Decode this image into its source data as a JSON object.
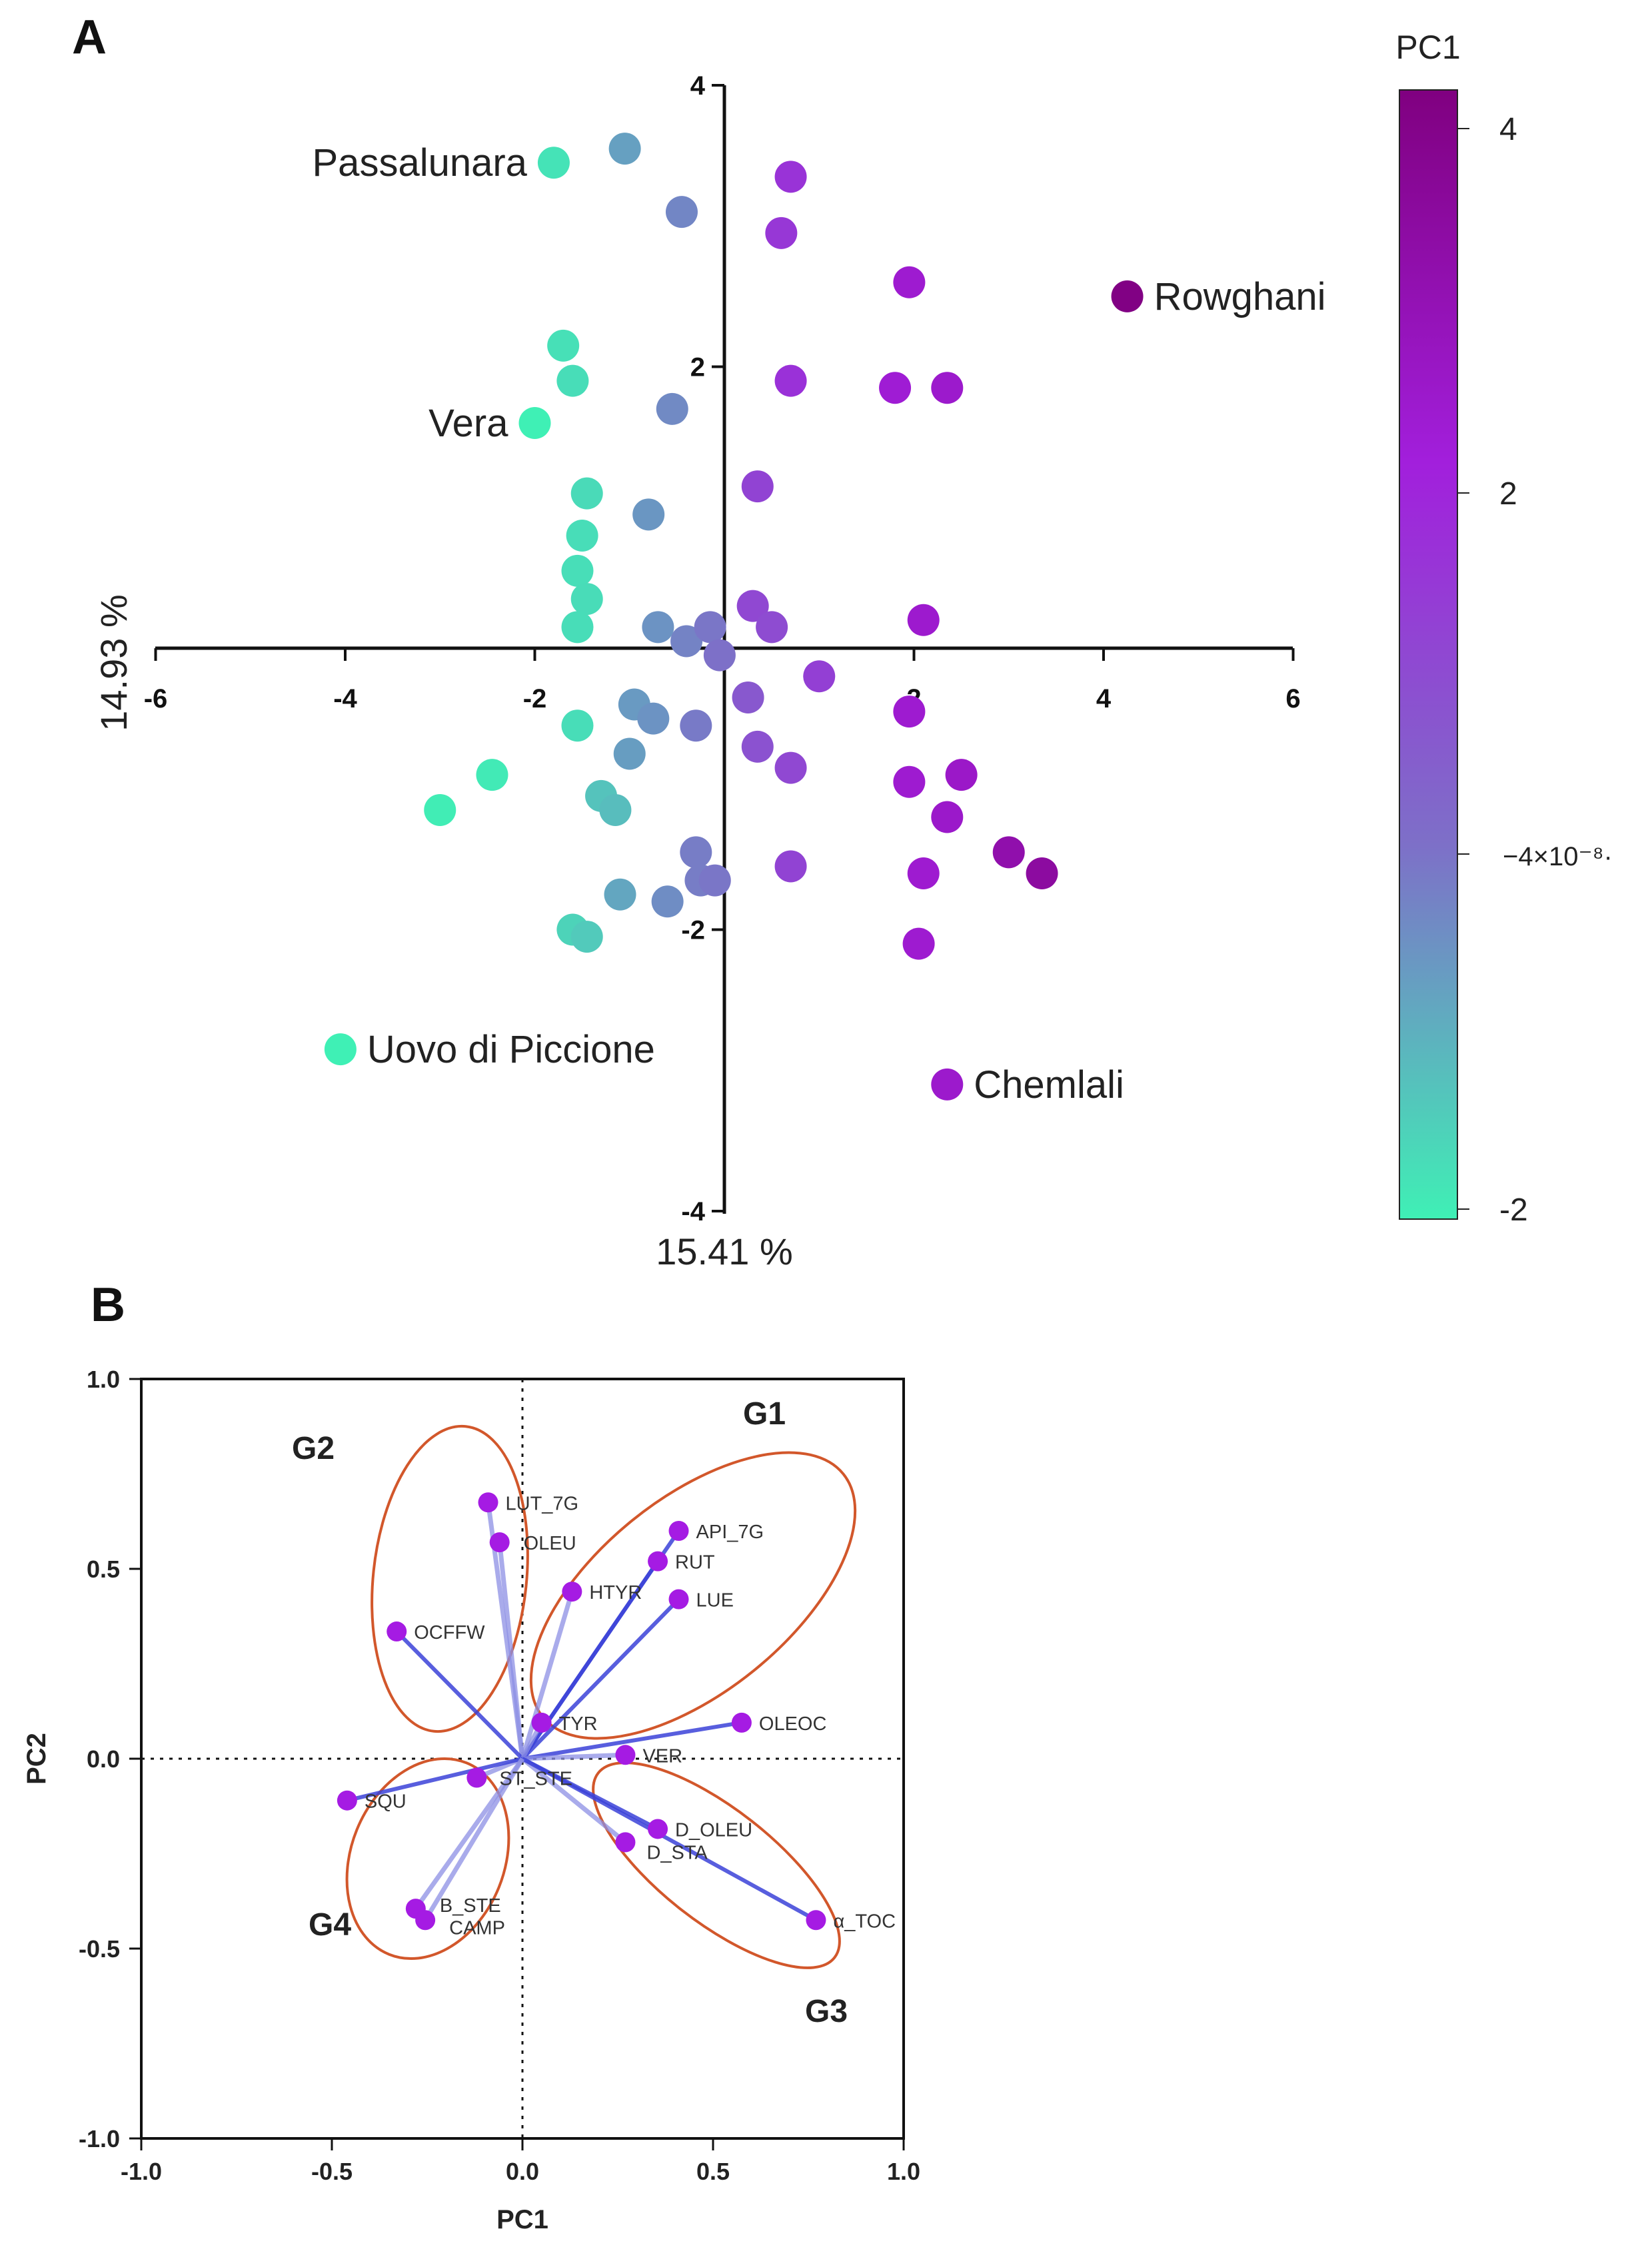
{
  "chart_data": [
    {
      "panel": "A",
      "type": "scatter",
      "title": "",
      "xlabel": "15.41 %",
      "ylabel": "14.93 %",
      "xlim": [
        -6,
        6
      ],
      "ylim": [
        -4,
        4
      ],
      "xticks": [
        "-6",
        "-4",
        "-2",
        "2",
        "4",
        "6"
      ],
      "yticks": [
        "4",
        "2",
        "-2",
        "-4"
      ],
      "colorbar": {
        "title": "PC1",
        "ticks": [
          "4",
          "2",
          "−4×10⁻⁸·",
          "-2"
        ],
        "colors": [
          "#800080",
          "#a21fdc",
          "#7d70c8",
          "#3ff0b5"
        ]
      },
      "points": [
        {
          "x": -1.8,
          "y": 3.45,
          "c": -1.8
        },
        {
          "x": -1.05,
          "y": 3.55,
          "c": -0.75
        },
        {
          "x": -0.45,
          "y": 3.1,
          "c": -0.35
        },
        {
          "x": 0.7,
          "y": 3.35,
          "c": 1.5
        },
        {
          "x": 0.6,
          "y": 2.95,
          "c": 1.4
        },
        {
          "x": 1.95,
          "y": 2.6,
          "c": 2.3
        },
        {
          "x": 4.25,
          "y": 2.5,
          "c": 4.2
        },
        {
          "x": -1.7,
          "y": 2.15,
          "c": -1.75
        },
        {
          "x": -1.6,
          "y": 1.9,
          "c": -1.7
        },
        {
          "x": -2.0,
          "y": 1.6,
          "c": -2.0
        },
        {
          "x": -0.55,
          "y": 1.7,
          "c": -0.4
        },
        {
          "x": 0.7,
          "y": 1.9,
          "c": 1.55
        },
        {
          "x": 1.8,
          "y": 1.85,
          "c": 2.2
        },
        {
          "x": 2.35,
          "y": 1.85,
          "c": 2.4
        },
        {
          "x": -1.45,
          "y": 1.1,
          "c": -1.65
        },
        {
          "x": -0.8,
          "y": 0.95,
          "c": -0.6
        },
        {
          "x": 0.35,
          "y": 1.15,
          "c": 1.1
        },
        {
          "x": -1.5,
          "y": 0.8,
          "c": -1.7
        },
        {
          "x": -1.55,
          "y": 0.55,
          "c": -1.72
        },
        {
          "x": -1.45,
          "y": 0.35,
          "c": -1.68
        },
        {
          "x": 0.3,
          "y": 0.3,
          "c": 1.0
        },
        {
          "x": -1.55,
          "y": 0.15,
          "c": -1.7
        },
        {
          "x": -0.7,
          "y": 0.15,
          "c": -0.55
        },
        {
          "x": -0.4,
          "y": 0.05,
          "c": -0.3
        },
        {
          "x": -0.15,
          "y": 0.15,
          "c": -0.1
        },
        {
          "x": -0.05,
          "y": -0.05,
          "c": 0.0
        },
        {
          "x": 0.5,
          "y": 0.15,
          "c": 0.9
        },
        {
          "x": 2.1,
          "y": 0.2,
          "c": 2.35
        },
        {
          "x": 1.0,
          "y": -0.2,
          "c": 1.2
        },
        {
          "x": 0.25,
          "y": -0.35,
          "c": 0.6
        },
        {
          "x": 1.95,
          "y": -0.45,
          "c": 2.3
        },
        {
          "x": -0.95,
          "y": -0.4,
          "c": -0.65
        },
        {
          "x": -0.75,
          "y": -0.5,
          "c": -0.55
        },
        {
          "x": -0.3,
          "y": -0.55,
          "c": -0.15
        },
        {
          "x": -1.55,
          "y": -0.55,
          "c": -1.7
        },
        {
          "x": 0.35,
          "y": -0.7,
          "c": 0.75
        },
        {
          "x": 0.7,
          "y": -0.85,
          "c": 1.0
        },
        {
          "x": -1.0,
          "y": -0.75,
          "c": -0.7
        },
        {
          "x": -2.45,
          "y": -0.9,
          "c": -1.9
        },
        {
          "x": 1.95,
          "y": -0.95,
          "c": 2.3
        },
        {
          "x": 2.5,
          "y": -0.9,
          "c": 2.5
        },
        {
          "x": -1.3,
          "y": -1.05,
          "c": -1.3
        },
        {
          "x": -1.15,
          "y": -1.15,
          "c": -1.2
        },
        {
          "x": -3.0,
          "y": -1.15,
          "c": -1.95
        },
        {
          "x": 2.35,
          "y": -1.2,
          "c": 2.45
        },
        {
          "x": 3.0,
          "y": -1.45,
          "c": 3.2
        },
        {
          "x": 3.35,
          "y": -1.6,
          "c": 3.5
        },
        {
          "x": -0.3,
          "y": -1.45,
          "c": -0.2
        },
        {
          "x": 0.7,
          "y": -1.55,
          "c": 1.1
        },
        {
          "x": 2.1,
          "y": -1.6,
          "c": 2.3
        },
        {
          "x": -0.25,
          "y": -1.65,
          "c": -0.2
        },
        {
          "x": -0.1,
          "y": -1.65,
          "c": -0.1
        },
        {
          "x": -1.1,
          "y": -1.75,
          "c": -0.85
        },
        {
          "x": -0.6,
          "y": -1.8,
          "c": -0.45
        },
        {
          "x": -1.6,
          "y": -2.0,
          "c": -1.55
        },
        {
          "x": -1.45,
          "y": -2.05,
          "c": -1.4
        },
        {
          "x": 2.05,
          "y": -2.1,
          "c": 2.3
        },
        {
          "x": -4.05,
          "y": -2.85,
          "c": -2.0
        },
        {
          "x": 2.35,
          "y": -3.1,
          "c": 2.4
        }
      ],
      "annotations": [
        {
          "text": "Passalunara",
          "x": -1.8,
          "y": 3.45,
          "side": "left"
        },
        {
          "text": "Rowghani",
          "x": 4.25,
          "y": 2.5,
          "side": "right"
        },
        {
          "text": "Vera",
          "x": -2.0,
          "y": 1.6,
          "side": "left"
        },
        {
          "text": "Uovo di Piccione",
          "x": -4.05,
          "y": -2.85,
          "side": "right"
        },
        {
          "text": "Chemlali",
          "x": 2.35,
          "y": -3.1,
          "side": "right"
        }
      ]
    },
    {
      "panel": "B",
      "type": "scatter",
      "title": "",
      "xlabel": "PC1",
      "ylabel": "PC2",
      "xlim": [
        -1.0,
        1.0
      ],
      "ylim": [
        -1.0,
        1.0
      ],
      "xticks": [
        "-1.0",
        "-0.5",
        "0.0",
        "0.5",
        "1.0"
      ],
      "yticks": [
        "1.0",
        "0.5",
        "0.0",
        "-0.5",
        "-1.0"
      ],
      "loadings": [
        {
          "name": "LUT_7G",
          "x": -0.09,
          "y": 0.675
        },
        {
          "name": "OLEU",
          "x": -0.06,
          "y": 0.57
        },
        {
          "name": "API_7G",
          "x": 0.41,
          "y": 0.6
        },
        {
          "name": "RUT",
          "x": 0.355,
          "y": 0.52
        },
        {
          "name": "HTYR",
          "x": 0.13,
          "y": 0.44
        },
        {
          "name": "LUE",
          "x": 0.41,
          "y": 0.42
        },
        {
          "name": "OCFFW",
          "x": -0.33,
          "y": 0.335
        },
        {
          "name": "TYR",
          "x": 0.05,
          "y": 0.095
        },
        {
          "name": "OLEOC",
          "x": 0.575,
          "y": 0.095
        },
        {
          "name": "VER",
          "x": 0.27,
          "y": 0.01
        },
        {
          "name": "ST_STE",
          "x": -0.12,
          "y": -0.05
        },
        {
          "name": "SQU",
          "x": -0.46,
          "y": -0.11
        },
        {
          "name": "D_OLEU",
          "x": 0.355,
          "y": -0.185
        },
        {
          "name": "D_STA",
          "x": 0.27,
          "y": -0.22
        },
        {
          "name": "α_TOC",
          "x": 0.77,
          "y": -0.425
        },
        {
          "name": "B_STE",
          "x": -0.28,
          "y": -0.395
        },
        {
          "name": "CAMP",
          "x": -0.255,
          "y": -0.425
        }
      ],
      "groups": [
        {
          "name": "G1",
          "members": [
            "API_7G",
            "RUT",
            "HTYR",
            "LUE",
            "TYR",
            "OLEOC",
            "VER"
          ]
        },
        {
          "name": "G2",
          "members": [
            "LUT_7G",
            "OLEU",
            "OCFFW"
          ]
        },
        {
          "name": "G3",
          "members": [
            "D_OLEU",
            "D_STA",
            "α_TOC"
          ]
        },
        {
          "name": "G4",
          "members": [
            "SQU",
            "ST_STE",
            "B_STE",
            "CAMP"
          ]
        }
      ]
    }
  ]
}
